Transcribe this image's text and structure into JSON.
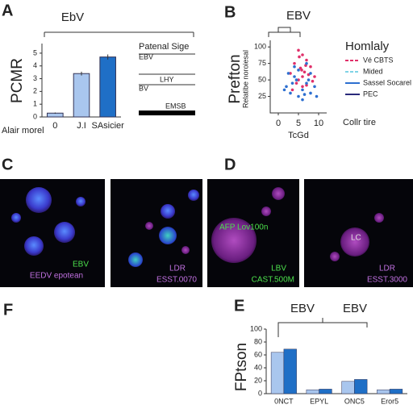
{
  "panel_labels": [
    "A",
    "B",
    "C",
    "D",
    "F",
    "E"
  ],
  "chart_data": [
    {
      "type": "bar",
      "title": "EbV",
      "ylabel": "PCMR",
      "xlabel": "Alair morel",
      "categories": [
        "0",
        "J.I",
        "SAsicier"
      ],
      "values": [
        0.3,
        3.4,
        4.7
      ],
      "errors": [
        0.05,
        0.15,
        0.2
      ],
      "colors": [
        "#a9c6ee",
        "#a9c6ee",
        "#1f6fc6"
      ],
      "ylim": [
        0,
        5.5
      ],
      "yticks": [
        0,
        1,
        2,
        3,
        4,
        5
      ],
      "side_title": "Patenal Sige",
      "side_labels": [
        "EBV",
        "LHY",
        "BV",
        "EMSB"
      ]
    },
    {
      "type": "scatter",
      "title": "EBV",
      "ylabel": "Prefton",
      "ylabel2": "Relatibe noroiesal",
      "xlabel": "TcGd",
      "xlim": [
        -2,
        12
      ],
      "ylim": [
        0,
        110
      ],
      "xticks": [
        0,
        5,
        10
      ],
      "yticks": [
        25,
        50,
        75,
        100
      ],
      "legend_title": "Homlaly",
      "annotation": "Collr tire",
      "series": [
        {
          "name": "Vé CBTS",
          "color": "#e0306a",
          "x": [
            5,
            6,
            7,
            4,
            8,
            5.5,
            6.5,
            3,
            7.5,
            6,
            5,
            8.5,
            4.5,
            7,
            6,
            5.2,
            6.8,
            3.5,
            9,
            5.8
          ],
          "values": [
            95,
            88,
            80,
            75,
            70,
            68,
            62,
            60,
            58,
            55,
            50,
            48,
            45,
            42,
            40,
            85,
            72,
            35,
            55,
            65
          ]
        },
        {
          "name": "Mided",
          "color": "#7fd3e6",
          "x": [],
          "values": []
        },
        {
          "name": "Sassel Socarel",
          "color": "#2d6fd0",
          "x": [
            2,
            3,
            4,
            5,
            6,
            7,
            8,
            2.5,
            4,
            6,
            7.5,
            9,
            3.5,
            5,
            6.5,
            8,
            1.5,
            4.5,
            7,
            9.5
          ],
          "values": [
            40,
            30,
            55,
            25,
            35,
            45,
            30,
            60,
            70,
            20,
            50,
            40,
            45,
            65,
            28,
            60,
            35,
            50,
            75,
            25
          ]
        },
        {
          "name": "PEC",
          "color": "#2a2a7a",
          "x": [],
          "values": []
        }
      ]
    },
    {
      "type": "grouped_bar",
      "titles": [
        "EBV",
        "EBV"
      ],
      "ylabel": "FPtson",
      "categories": [
        "0NCT",
        "EPYL",
        "ONC5",
        "Eror5"
      ],
      "ylim": [
        0,
        100
      ],
      "yticks": [
        0,
        20,
        40,
        60,
        80,
        100
      ],
      "series": [
        {
          "color": "#a9c6ee",
          "values": [
            64,
            6,
            19,
            6
          ]
        },
        {
          "color": "#1f6fc6",
          "values": [
            69,
            7,
            22,
            7
          ]
        }
      ]
    }
  ],
  "micrographs": [
    {
      "labels": [
        "EBV",
        "EEDV epotean"
      ]
    },
    {
      "labels": [
        "LDR",
        "ESST.0070"
      ]
    },
    {
      "labels": [
        "AFP Lov100n",
        "LBV",
        "CAST.500M"
      ]
    },
    {
      "labels": [
        "LC",
        "LDR",
        "ESST.3000"
      ]
    }
  ]
}
